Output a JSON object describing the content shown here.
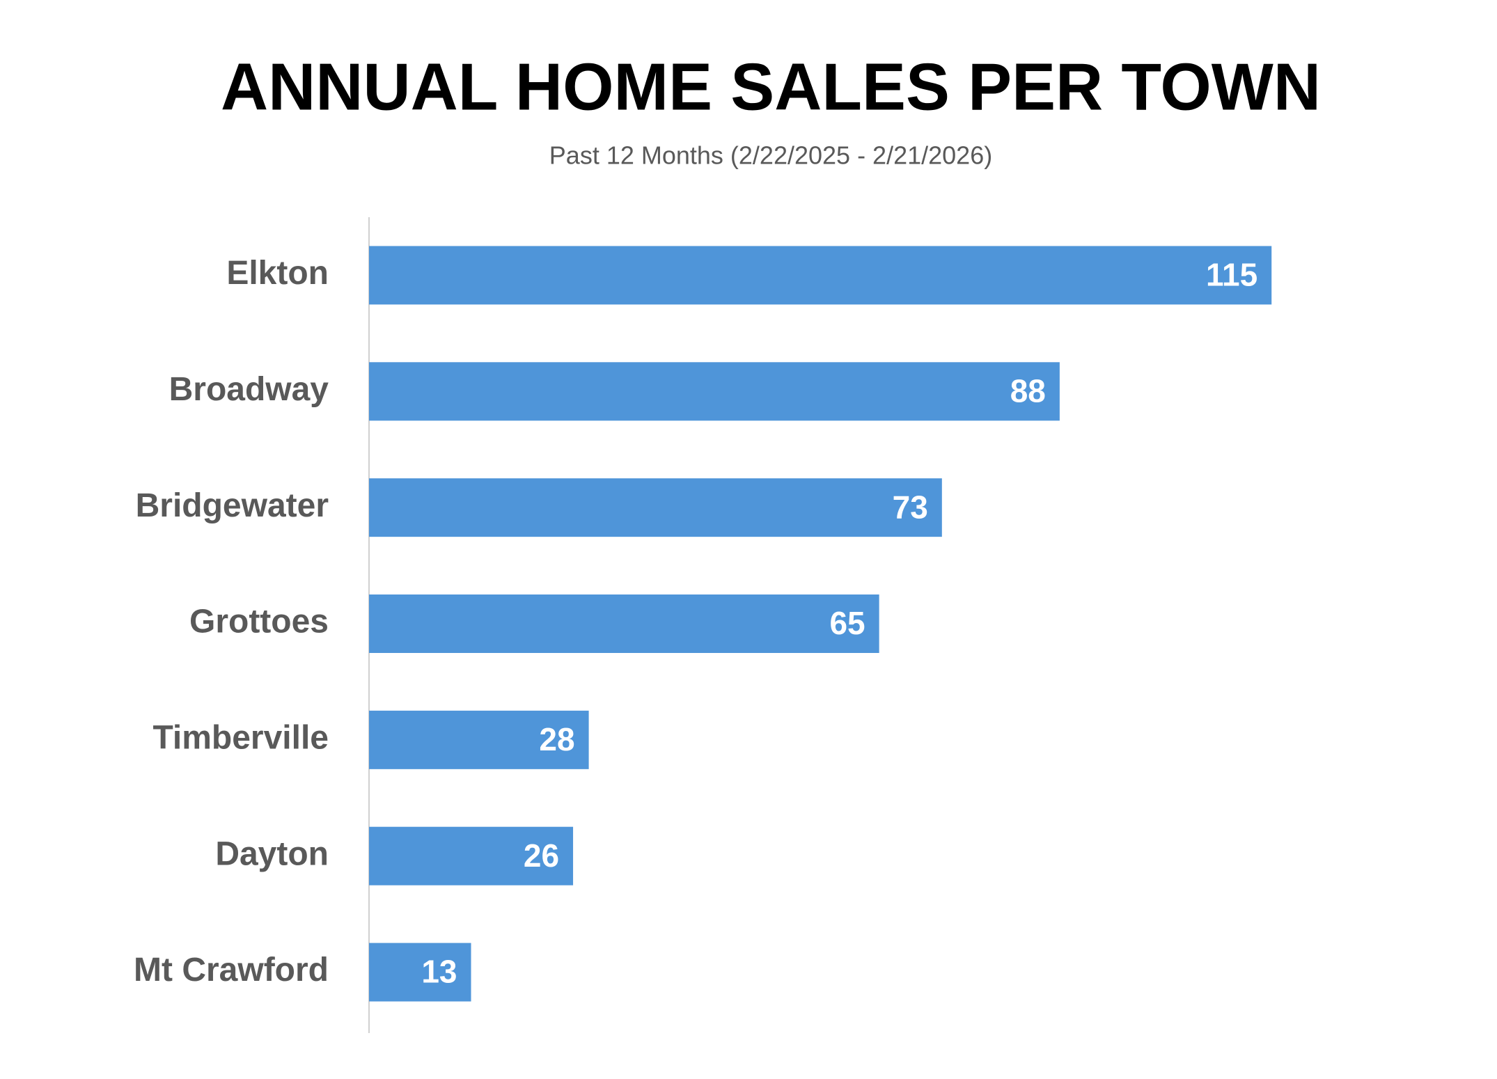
{
  "chart_data": {
    "type": "hbar",
    "title": "ANNUAL HOME SALES PER TOWN",
    "subtitle": "Past 12 Months (2/22/2025 - 2/21/2026)",
    "categories": [
      "Elkton",
      "Broadway",
      "Bridgewater",
      "Grottoes",
      "Timberville",
      "Dayton",
      "Mt Crawford"
    ],
    "values": [
      115,
      88,
      73,
      65,
      28,
      26,
      13
    ],
    "color": "#4f95d9",
    "xlim": [
      0,
      140
    ]
  }
}
